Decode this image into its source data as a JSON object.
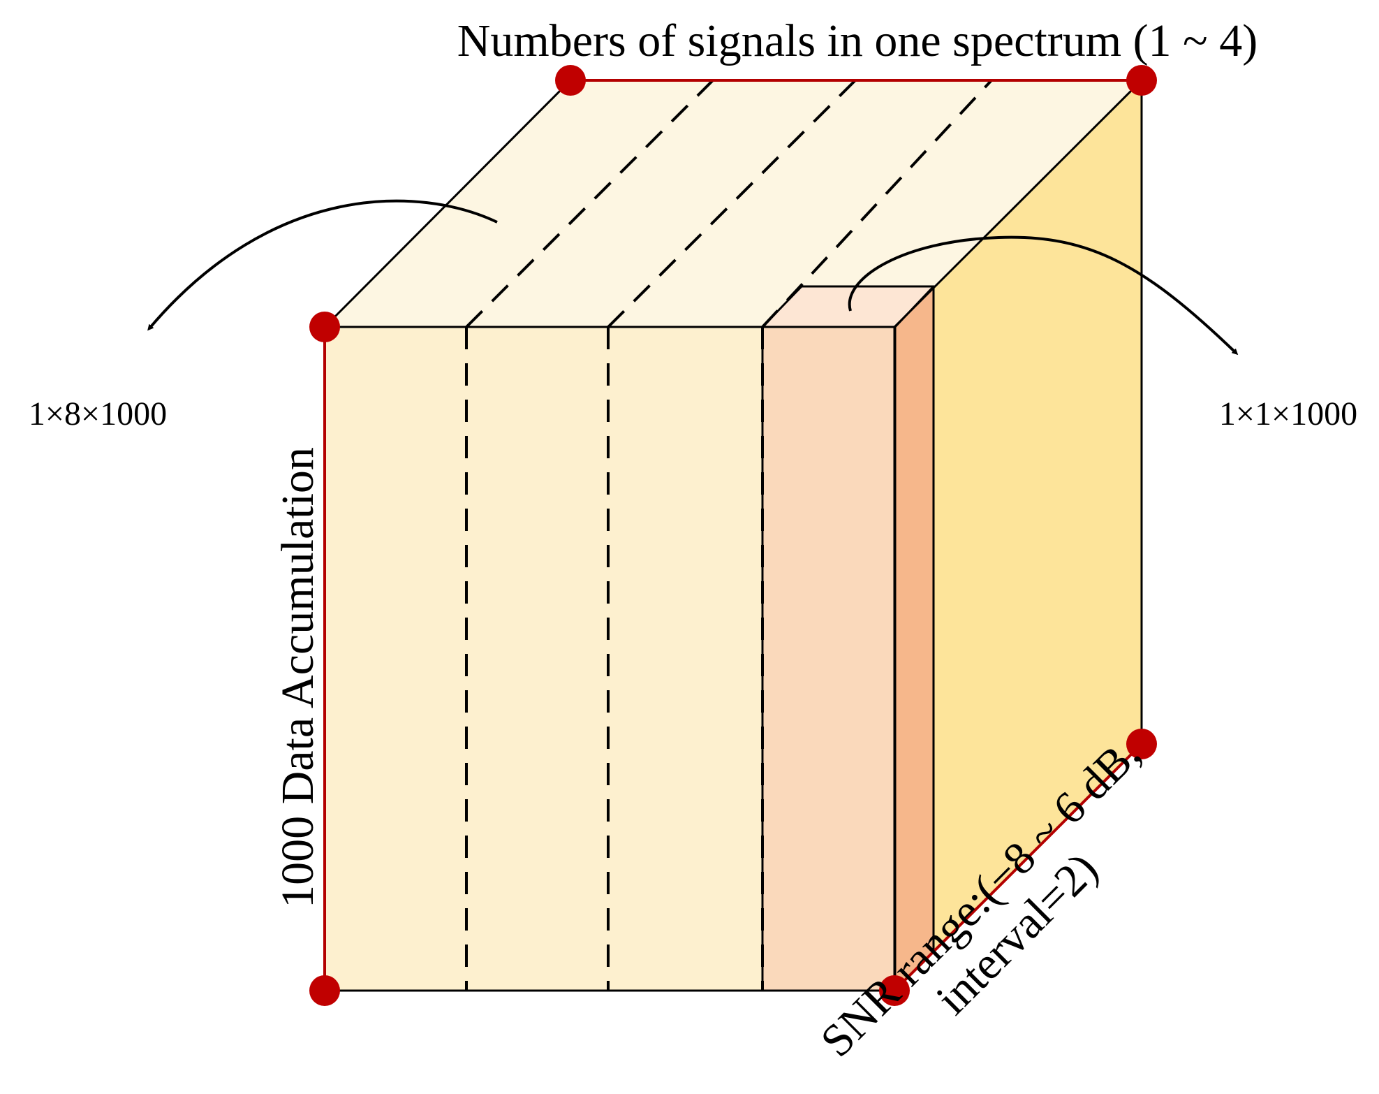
{
  "labels": {
    "top": "Numbers of signals in one spectrum (1 ~ 4)",
    "left_vertical": "1000 Data Accumulation",
    "left_dim": "1×8×1000",
    "right_dim": "1×1×1000",
    "snr_line1": "SNR range:(−8 ~ 6 dB,",
    "snr_line2": "interval=2)"
  },
  "colors": {
    "top_face": "#fdf6e2",
    "front_face": "#fdf0cf",
    "right_face": "#fde49a",
    "slice_front": "#fad9bb",
    "slice_top": "#fde6d4",
    "slice_side": "#f6b78b",
    "red_marker": "#c00000",
    "red_edge": "#b30000"
  }
}
